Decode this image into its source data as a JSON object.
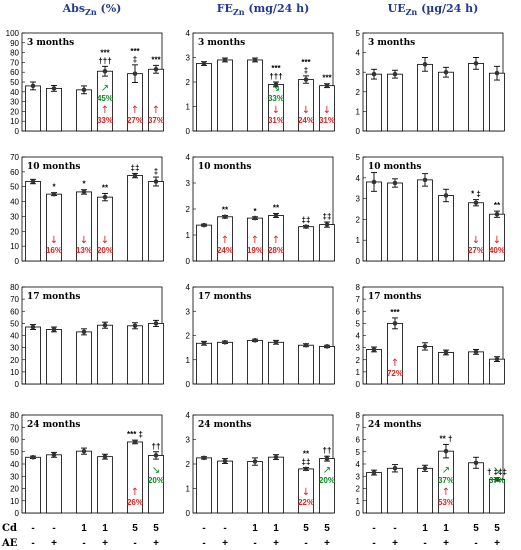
{
  "colors": {
    "title": "#1f3a93",
    "up": "#e0201b",
    "down_green": "#0a8a1e",
    "bar": "#ffffff",
    "stroke": "#000000"
  },
  "column_titles": [
    {
      "main": "Abs",
      "sub": "Zn",
      "rest": " (%)"
    },
    {
      "main": "FE",
      "sub": "Zn",
      "rest": " (mg/24 h)"
    },
    {
      "main": "UE",
      "sub": "Zn",
      "rest": " (µg/24 h)"
    }
  ],
  "periods": [
    "3 months",
    "10 months",
    "17 months",
    "24 months"
  ],
  "x_labels": {
    "cd_label": "Cd",
    "ae_label": "AE",
    "cd_values": [
      "-",
      "-",
      "1",
      "1",
      "5",
      "5"
    ],
    "ae_values": [
      "-",
      "+",
      "-",
      "+",
      "-",
      "+"
    ]
  },
  "chart_data": [
    {
      "type": "bar",
      "column": 0,
      "row": 0,
      "period": "3 months",
      "ylim": [
        0,
        100
      ],
      "yticks": [
        0,
        10,
        20,
        30,
        40,
        50,
        60,
        70,
        80,
        90,
        100
      ],
      "values": [
        46,
        43.5,
        42,
        61,
        58.5,
        63
      ],
      "errors": [
        4,
        3,
        4,
        5,
        9,
        4
      ],
      "sig": [
        "",
        "",
        "",
        "***\n†††",
        "***\n‡",
        "***"
      ],
      "annotations": [
        {
          "bar": 3,
          "text": "45%",
          "dir": "up",
          "color": "down_green",
          "pos": "mid"
        },
        {
          "bar": 3,
          "text": "33%",
          "dir": "up",
          "color": "up",
          "pos": "low"
        },
        {
          "bar": 4,
          "text": "27%",
          "dir": "up",
          "color": "up",
          "pos": "low"
        },
        {
          "bar": 5,
          "text": "37%",
          "dir": "up",
          "color": "up",
          "pos": "low"
        }
      ]
    },
    {
      "type": "bar",
      "column": 1,
      "row": 0,
      "period": "3 months",
      "ylim": [
        0,
        4
      ],
      "yticks": [
        0,
        1,
        2,
        3,
        4
      ],
      "values": [
        2.75,
        2.9,
        2.9,
        1.9,
        2.1,
        1.85
      ],
      "errors": [
        0.08,
        0.08,
        0.08,
        0.1,
        0.15,
        0.08
      ],
      "sig": [
        "",
        "",
        "",
        "***\n†††",
        "***\n‡",
        "***"
      ],
      "annotations": [
        {
          "bar": 3,
          "text": "33%",
          "dir": "down",
          "color": "down_green",
          "pos": "mid"
        },
        {
          "bar": 3,
          "text": "31%",
          "dir": "down",
          "color": "up",
          "pos": "low"
        },
        {
          "bar": 4,
          "text": "24%",
          "dir": "down",
          "color": "up",
          "pos": "low"
        },
        {
          "bar": 5,
          "text": "31%",
          "dir": "down",
          "color": "up",
          "pos": "low"
        }
      ]
    },
    {
      "type": "bar",
      "column": 2,
      "row": 0,
      "period": "3 months",
      "ylim": [
        0,
        5
      ],
      "yticks": [
        0,
        1,
        2,
        3,
        4,
        5
      ],
      "values": [
        2.9,
        2.9,
        3.4,
        3.0,
        3.45,
        2.95
      ],
      "errors": [
        0.25,
        0.2,
        0.35,
        0.25,
        0.3,
        0.35
      ],
      "sig": [
        "",
        "",
        "",
        "",
        "",
        ""
      ],
      "annotations": []
    },
    {
      "type": "bar",
      "column": 0,
      "row": 1,
      "period": "10 months",
      "ylim": [
        0,
        70
      ],
      "yticks": [
        0,
        10,
        20,
        30,
        40,
        50,
        60,
        70
      ],
      "values": [
        53.5,
        45,
        46.5,
        43,
        57.5,
        53.5
      ],
      "errors": [
        1.5,
        1,
        1.5,
        2.5,
        1.5,
        3
      ],
      "sig": [
        "",
        "*",
        "*",
        "**",
        "‡‡",
        "‡"
      ],
      "annotations": [
        {
          "bar": 1,
          "text": "16%",
          "dir": "down",
          "color": "up",
          "pos": "low"
        },
        {
          "bar": 2,
          "text": "13%",
          "dir": "down",
          "color": "up",
          "pos": "low"
        },
        {
          "bar": 3,
          "text": "20%",
          "dir": "down",
          "color": "up",
          "pos": "low"
        }
      ]
    },
    {
      "type": "bar",
      "column": 1,
      "row": 1,
      "period": "10 months",
      "ylim": [
        0,
        4
      ],
      "yticks": [
        0,
        1,
        2,
        3,
        4
      ],
      "values": [
        1.38,
        1.7,
        1.65,
        1.75,
        1.32,
        1.4
      ],
      "errors": [
        0.04,
        0.05,
        0.05,
        0.08,
        0.05,
        0.1
      ],
      "sig": [
        "",
        "**",
        "*",
        "**",
        "‡‡",
        "‡‡"
      ],
      "annotations": [
        {
          "bar": 1,
          "text": "24%",
          "dir": "up",
          "color": "up",
          "pos": "low"
        },
        {
          "bar": 2,
          "text": "19%",
          "dir": "up",
          "color": "up",
          "pos": "low"
        },
        {
          "bar": 3,
          "text": "28%",
          "dir": "up",
          "color": "up",
          "pos": "low"
        }
      ]
    },
    {
      "type": "bar",
      "column": 2,
      "row": 1,
      "period": "10 months",
      "ylim": [
        0,
        5
      ],
      "yticks": [
        0,
        1,
        2,
        3,
        4,
        5
      ],
      "values": [
        3.8,
        3.75,
        3.9,
        3.15,
        2.8,
        2.25
      ],
      "errors": [
        0.45,
        0.2,
        0.3,
        0.3,
        0.15,
        0.15
      ],
      "sig": [
        "",
        "",
        "",
        "",
        "* ‡",
        "**"
      ],
      "annotations": [
        {
          "bar": 4,
          "text": "27%",
          "dir": "down",
          "color": "up",
          "pos": "low"
        },
        {
          "bar": 5,
          "text": "40%",
          "dir": "down",
          "color": "up",
          "pos": "low"
        }
      ]
    },
    {
      "type": "bar",
      "column": 0,
      "row": 2,
      "period": "17 months",
      "ylim": [
        0,
        80
      ],
      "yticks": [
        0,
        10,
        20,
        30,
        40,
        50,
        60,
        70,
        80
      ],
      "values": [
        47,
        45,
        43,
        48.5,
        48,
        50
      ],
      "errors": [
        2,
        2,
        2.5,
        2.5,
        2.5,
        2.5
      ],
      "sig": [
        "",
        "",
        "",
        "",
        "",
        ""
      ],
      "annotations": []
    },
    {
      "type": "bar",
      "column": 1,
      "row": 2,
      "period": "17 months",
      "ylim": [
        0,
        4
      ],
      "yticks": [
        0,
        1,
        2,
        3,
        4
      ],
      "values": [
        1.68,
        1.72,
        1.8,
        1.72,
        1.6,
        1.55
      ],
      "errors": [
        0.08,
        0.05,
        0.05,
        0.08,
        0.06,
        0.05
      ],
      "sig": [
        "",
        "",
        "",
        "",
        "",
        ""
      ],
      "annotations": []
    },
    {
      "type": "bar",
      "column": 2,
      "row": 2,
      "period": "17 months",
      "ylim": [
        0,
        8
      ],
      "yticks": [
        0,
        1,
        2,
        3,
        4,
        5,
        6,
        7,
        8
      ],
      "values": [
        2.85,
        5.0,
        3.1,
        2.6,
        2.65,
        2.05
      ],
      "errors": [
        0.2,
        0.45,
        0.3,
        0.2,
        0.2,
        0.2
      ],
      "sig": [
        "",
        "***",
        "",
        "",
        "",
        ""
      ],
      "annotations": [
        {
          "bar": 1,
          "text": "72%",
          "dir": "up",
          "color": "up",
          "pos": "low"
        }
      ]
    },
    {
      "type": "bar",
      "column": 0,
      "row": 3,
      "period": "24 months",
      "ylim": [
        0,
        80
      ],
      "yticks": [
        0,
        10,
        20,
        30,
        40,
        50,
        60,
        70,
        80
      ],
      "values": [
        45.5,
        47.5,
        50.5,
        46,
        58,
        47
      ],
      "errors": [
        1,
        2,
        2.5,
        2,
        1.5,
        3
      ],
      "sig": [
        "",
        "",
        "",
        "",
        "*** ‡",
        "††"
      ],
      "annotations": [
        {
          "bar": 4,
          "text": "26%",
          "dir": "up",
          "color": "up",
          "pos": "low"
        },
        {
          "bar": 5,
          "text": "20%",
          "dir": "down",
          "color": "down_green",
          "pos": "mid"
        }
      ]
    },
    {
      "type": "bar",
      "column": 1,
      "row": 3,
      "period": "24 months",
      "ylim": [
        0,
        4
      ],
      "yticks": [
        0,
        1,
        2,
        3,
        4
      ],
      "values": [
        2.25,
        2.12,
        2.1,
        2.28,
        1.8,
        2.22
      ],
      "errors": [
        0.05,
        0.1,
        0.15,
        0.1,
        0.06,
        0.1
      ],
      "sig": [
        "",
        "",
        "",
        "",
        "**\n‡‡",
        "††"
      ],
      "annotations": [
        {
          "bar": 4,
          "text": "22%",
          "dir": "down",
          "color": "up",
          "pos": "low"
        },
        {
          "bar": 5,
          "text": "20%",
          "dir": "up",
          "color": "down_green",
          "pos": "mid"
        }
      ]
    },
    {
      "type": "bar",
      "column": 2,
      "row": 3,
      "period": "24 months",
      "ylim": [
        0,
        8
      ],
      "yticks": [
        0,
        1,
        2,
        3,
        4,
        5,
        6,
        7,
        8
      ],
      "values": [
        3.3,
        3.65,
        3.65,
        5.05,
        4.1,
        2.75
      ],
      "errors": [
        0.2,
        0.3,
        0.25,
        0.55,
        0.45,
        0.15
      ],
      "sig": [
        "",
        "",
        "",
        "** †",
        "",
        "† ‡‡‡"
      ],
      "annotations": [
        {
          "bar": 3,
          "text": "37%",
          "dir": "up",
          "color": "down_green",
          "pos": "mid"
        },
        {
          "bar": 3,
          "text": "53%",
          "dir": "up",
          "color": "up",
          "pos": "low"
        },
        {
          "bar": 5,
          "text": "37%",
          "dir": "down",
          "color": "down_green",
          "pos": "mid"
        }
      ]
    }
  ]
}
